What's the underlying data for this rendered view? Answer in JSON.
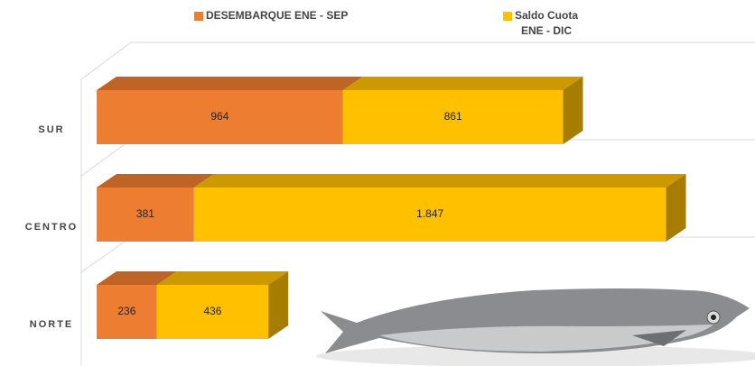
{
  "chart_data": {
    "type": "bar3d_stacked_horizontal",
    "categories": [
      "SUR",
      "CENTRO",
      "NORTE"
    ],
    "series": [
      {
        "name": "DESEMBARQUE ENE - SEP",
        "color": "#ED7D31",
        "values": [
          964,
          381,
          236
        ]
      },
      {
        "name": "Saldo Cuota ENE - DIC",
        "color": "#FFC000",
        "values": [
          861,
          1847,
          436
        ],
        "value_labels": [
          "861",
          "1.847",
          "436"
        ]
      }
    ]
  }
}
